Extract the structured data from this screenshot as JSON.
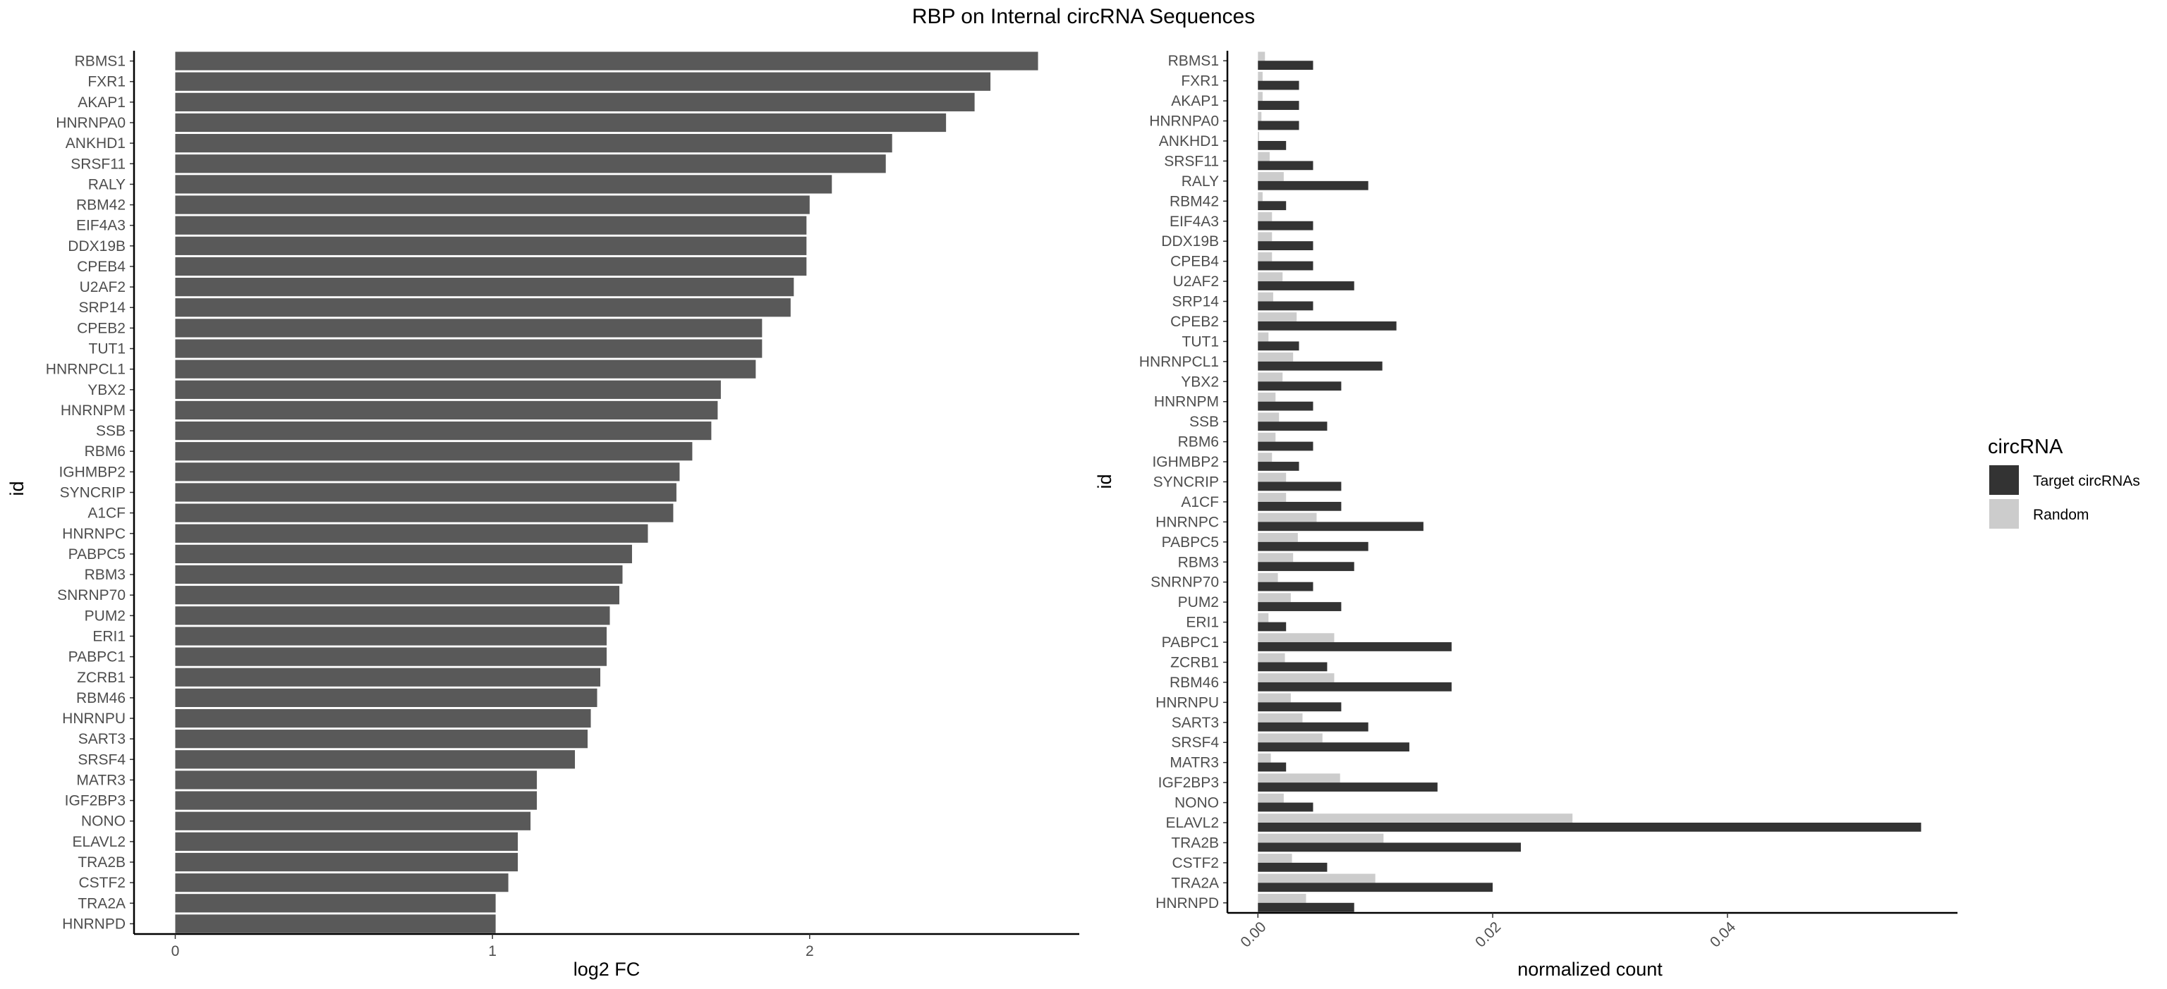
{
  "title": "RBP on Internal circRNA Sequences",
  "chart_data": [
    {
      "type": "bar",
      "orientation": "horizontal",
      "xlabel": "log2 FC",
      "ylabel": "id",
      "xlim": [
        -0.13,
        2.85
      ],
      "xticks": [
        0,
        1,
        2
      ],
      "grid": false,
      "categories": [
        "RBMS1",
        "FXR1",
        "AKAP1",
        "HNRNPA0",
        "ANKHD1",
        "SRSF11",
        "RALY",
        "RBM42",
        "EIF4A3",
        "DDX19B",
        "CPEB4",
        "U2AF2",
        "SRP14",
        "CPEB2",
        "TUT1",
        "HNRNPCL1",
        "YBX2",
        "HNRNPM",
        "SSB",
        "RBM6",
        "IGHMBP2",
        "SYNCRIP",
        "A1CF",
        "HNRNPC",
        "PABPC5",
        "RBM3",
        "SNRNP70",
        "PUM2",
        "ERI1",
        "PABPC1",
        "ZCRB1",
        "RBM46",
        "HNRNPU",
        "SART3",
        "SRSF4",
        "MATR3",
        "IGF2BP3",
        "NONO",
        "ELAVL2",
        "TRA2B",
        "CSTF2",
        "TRA2A",
        "HNRNPD"
      ],
      "values": [
        2.72,
        2.57,
        2.52,
        2.43,
        2.26,
        2.24,
        2.07,
        2.0,
        1.99,
        1.99,
        1.99,
        1.95,
        1.94,
        1.85,
        1.85,
        1.83,
        1.72,
        1.71,
        1.69,
        1.63,
        1.59,
        1.58,
        1.57,
        1.49,
        1.44,
        1.41,
        1.4,
        1.37,
        1.36,
        1.36,
        1.34,
        1.33,
        1.31,
        1.3,
        1.26,
        1.14,
        1.14,
        1.12,
        1.08,
        1.08,
        1.05,
        1.01,
        1.01
      ],
      "color": "#595959"
    },
    {
      "type": "bar",
      "orientation": "horizontal",
      "xlabel": "normalized count",
      "ylabel": "id",
      "xlim": [
        -0.0026,
        0.0596
      ],
      "xticks": [
        "0.00",
        "0.02",
        "0.04"
      ],
      "grid": false,
      "legend_position": "right",
      "legend_title": "circRNA",
      "categories": [
        "RBMS1",
        "FXR1",
        "AKAP1",
        "HNRNPA0",
        "ANKHD1",
        "SRSF11",
        "RALY",
        "RBM42",
        "EIF4A3",
        "DDX19B",
        "CPEB4",
        "U2AF2",
        "SRP14",
        "CPEB2",
        "TUT1",
        "HNRNPCL1",
        "YBX2",
        "HNRNPM",
        "SSB",
        "RBM6",
        "IGHMBP2",
        "SYNCRIP",
        "A1CF",
        "HNRNPC",
        "PABPC5",
        "RBM3",
        "SNRNP70",
        "PUM2",
        "ERI1",
        "PABPC1",
        "ZCRB1",
        "RBM46",
        "HNRNPU",
        "SART3",
        "SRSF4",
        "MATR3",
        "IGF2BP3",
        "NONO",
        "ELAVL2",
        "TRA2B",
        "CSTF2",
        "TRA2A",
        "HNRNPD"
      ],
      "series": [
        {
          "name": "Target circRNAs",
          "color": "#333333",
          "values": [
            0.0047,
            0.0035,
            0.0035,
            0.0035,
            0.0024,
            0.0047,
            0.0094,
            0.0024,
            0.0047,
            0.0047,
            0.0047,
            0.0082,
            0.0047,
            0.0118,
            0.0035,
            0.0106,
            0.0071,
            0.0047,
            0.0059,
            0.0047,
            0.0035,
            0.0071,
            0.0071,
            0.0141,
            0.0094,
            0.0082,
            0.0047,
            0.0071,
            0.0024,
            0.0165,
            0.0059,
            0.0165,
            0.0071,
            0.0094,
            0.0129,
            0.0024,
            0.0153,
            0.0047,
            0.0565,
            0.0224,
            0.0059,
            0.02,
            0.0082
          ]
        },
        {
          "name": "Random",
          "color": "#cccccc",
          "values": [
            0.0006,
            0.0004,
            0.0004,
            0.0003,
            0.0001,
            0.001,
            0.0022,
            0.0004,
            0.0012,
            0.0012,
            0.0012,
            0.0021,
            0.0013,
            0.0033,
            0.0009,
            0.003,
            0.0021,
            0.0015,
            0.0018,
            0.0015,
            0.0012,
            0.0024,
            0.0024,
            0.005,
            0.0034,
            0.003,
            0.0017,
            0.0028,
            0.0009,
            0.0065,
            0.0023,
            0.0065,
            0.0028,
            0.0038,
            0.0055,
            0.0011,
            0.007,
            0.0022,
            0.0268,
            0.0107,
            0.0029,
            0.01,
            0.0041
          ]
        }
      ]
    }
  ]
}
